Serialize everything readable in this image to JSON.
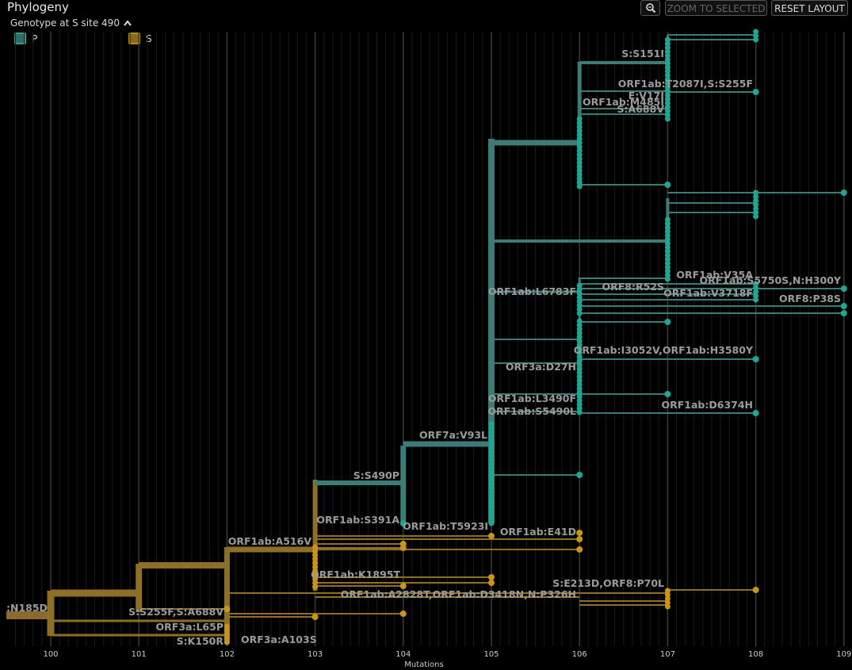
{
  "header": {
    "title": "Phylogeny",
    "legend_title": "Genotype at S site 490",
    "zoom_label": "ZOOM TO SELECTED",
    "reset_label": "RESET LAYOUT"
  },
  "legend": [
    {
      "label": "P",
      "color": "#3b7d76"
    },
    {
      "label": "S",
      "color": "#9a7a23"
    }
  ],
  "colors": {
    "P": "#3b7d76",
    "S": "#8f6f26",
    "P_node": "#1fa593",
    "S_node": "#c99516",
    "grid": "#3b3b3b"
  },
  "axis": {
    "title": "Mutations",
    "ticks": [
      "100",
      "101",
      "102",
      "103",
      "104",
      "105",
      "106",
      "107",
      "108",
      "109"
    ]
  },
  "branch_labels": [
    ":N185D",
    "S:S255F,S:A688V",
    "ORF3a:L65P",
    "S:K150R",
    "ORF3a:A103S",
    "ORF1ab:A516V",
    "ORF1ab:K1895T",
    "ORF1ab:A2828T,ORF1ab:D3418N,N:P326H",
    "S:E213D,ORF8:P70L",
    "S:S490P",
    "ORF1ab:S391A",
    "ORF1ab:T5923I",
    "ORF1ab:E41D",
    "ORF7a:V93L",
    "ORF1ab:S5490L",
    "ORF1ab:L3490F",
    "ORF1ab:D6374H",
    "ORF3a:D27H",
    "ORF1ab:I3052V,ORF1ab:H3580Y",
    "ORF1ab:L6783F",
    "ORF8:R52S",
    "ORF1ab:V3718F",
    "ORF8:P38S",
    "ORF1ab:V35A",
    "ORF1ab:S5750S,N:H300Y",
    "S:S151I",
    "ORF1ab:T2087I,S:S255F",
    "E:V17I",
    "ORF1ab:M485I",
    "S:A688V"
  ]
}
